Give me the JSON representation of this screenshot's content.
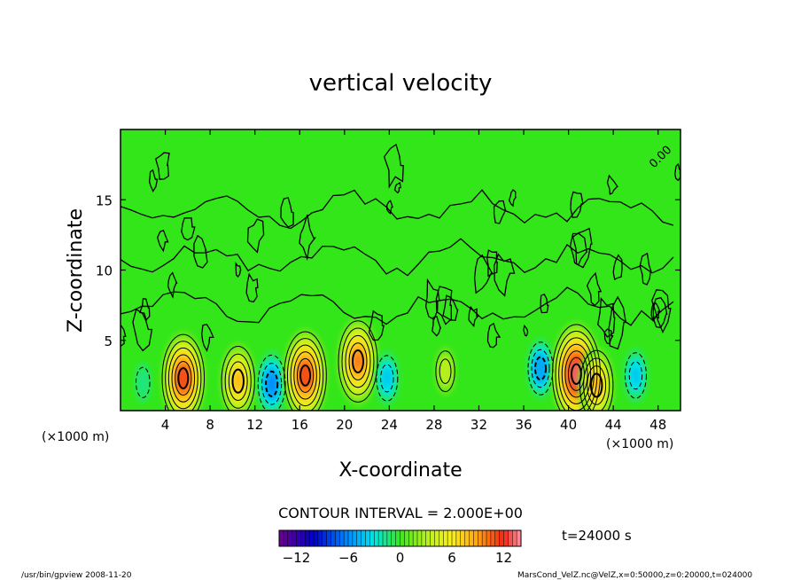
{
  "chart_data": {
    "type": "heatmap",
    "title": "vertical velocity",
    "xlabel": "X-coordinate",
    "ylabel": "Z-coordinate",
    "x_unit_left": "(×1000 m)",
    "x_unit_right": "(×1000 m)",
    "xlim": [
      0,
      50
    ],
    "ylim": [
      0,
      20
    ],
    "xticks": [
      4,
      8,
      12,
      16,
      20,
      24,
      28,
      32,
      36,
      40,
      44,
      48
    ],
    "yticks": [
      5,
      10,
      15
    ],
    "contour_interval_text": "CONTOUR INTERVAL = 2.000E+00",
    "contour_label": "0.00",
    "time_text": "t=24000 s",
    "colorbar": {
      "range": [
        -14,
        14
      ],
      "ticks": [
        -12,
        -6,
        0,
        6,
        12
      ]
    },
    "cells": [
      {
        "x": 5.6,
        "z": 2.3,
        "w": 11.0
      },
      {
        "x": 10.5,
        "z": 2.1,
        "w": 8.0
      },
      {
        "x": 13.5,
        "z": 1.9,
        "w": -6.0
      },
      {
        "x": 16.5,
        "z": 2.5,
        "w": 11.0
      },
      {
        "x": 21.2,
        "z": 3.5,
        "w": 10.0
      },
      {
        "x": 23.8,
        "z": 2.3,
        "w": -4.0
      },
      {
        "x": 29.0,
        "z": 2.8,
        "w": 3.0
      },
      {
        "x": 37.5,
        "z": 3.0,
        "w": -5.0
      },
      {
        "x": 40.7,
        "z": 2.6,
        "w": 13.0
      },
      {
        "x": 42.5,
        "z": 1.8,
        "w": 8.0
      },
      {
        "x": 46.0,
        "z": 2.5,
        "w": -4.0
      },
      {
        "x": 2.0,
        "z": 2.0,
        "w": -1.5
      }
    ]
  },
  "footer": {
    "left": "/usr/bin/gpview  2008-11-20",
    "right": "MarsCond_VelZ.nc@VelZ,x=0:50000,z=0:20000,t=024000"
  }
}
